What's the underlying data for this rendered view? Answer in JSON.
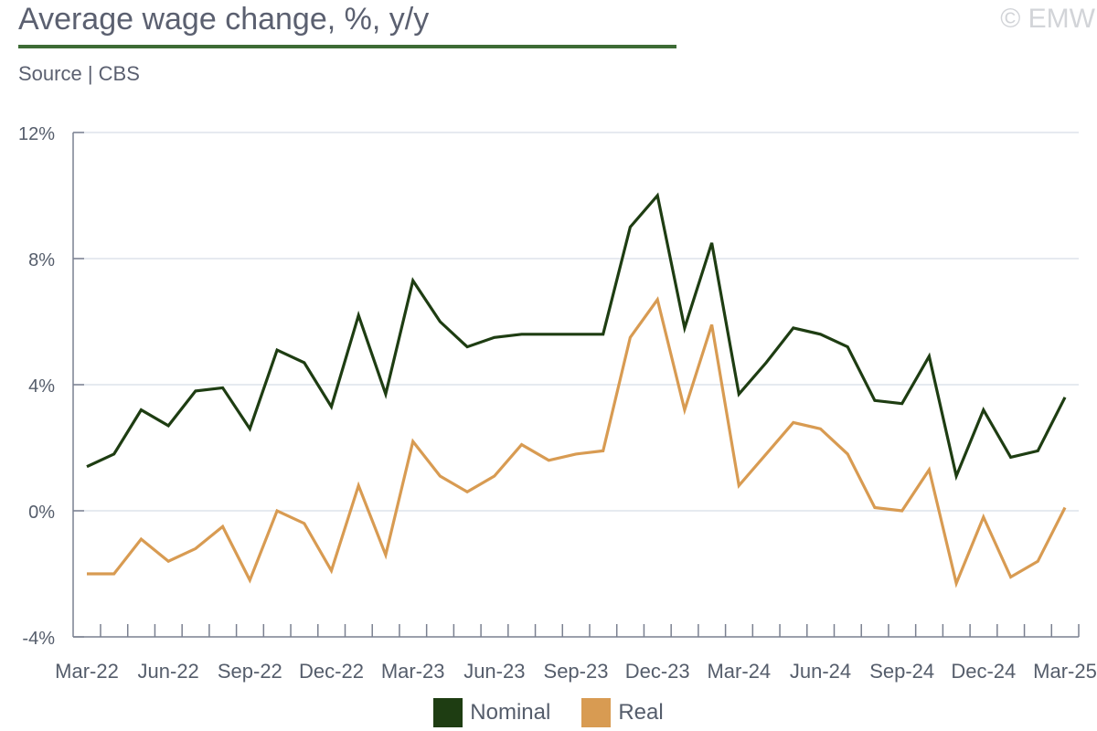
{
  "header": {
    "title": "Average wage change, %, y/y",
    "source": "Source | CBS",
    "copyright": "© EMW"
  },
  "colors": {
    "nominal": "#1e3d12",
    "real": "#d89b52",
    "accent": "#3d6b35",
    "grid": "#dde3ec",
    "axis": "#7a8090"
  },
  "chart_data": {
    "type": "line",
    "x": [
      "Mar-22",
      "Apr-22",
      "May-22",
      "Jun-22",
      "Jul-22",
      "Aug-22",
      "Sep-22",
      "Oct-22",
      "Nov-22",
      "Dec-22",
      "Jan-23",
      "Feb-23",
      "Mar-23",
      "Apr-23",
      "May-23",
      "Jun-23",
      "Jul-23",
      "Aug-23",
      "Sep-23",
      "Oct-23",
      "Nov-23",
      "Dec-23",
      "Jan-24",
      "Feb-24",
      "Mar-24",
      "Apr-24",
      "May-24",
      "Jun-24",
      "Jul-24",
      "Aug-24",
      "Sep-24",
      "Oct-24",
      "Nov-24",
      "Dec-24",
      "Jan-25",
      "Feb-25",
      "Mar-25"
    ],
    "tick_labels": [
      "Mar-22",
      "Jun-22",
      "Sep-22",
      "Dec-22",
      "Mar-23",
      "Jun-23",
      "Sep-23",
      "Dec-23",
      "Mar-24",
      "Jun-24",
      "Sep-24",
      "Dec-24",
      "Mar-25"
    ],
    "series": [
      {
        "name": "Nominal",
        "values": [
          1.4,
          1.8,
          3.2,
          2.7,
          3.8,
          3.9,
          2.6,
          5.1,
          4.7,
          3.3,
          6.2,
          3.7,
          7.3,
          6.0,
          5.2,
          5.5,
          5.6,
          5.6,
          5.6,
          5.6,
          9.0,
          10.0,
          5.8,
          8.5,
          3.7,
          4.7,
          5.8,
          5.6,
          5.2,
          3.5,
          3.4,
          4.9,
          1.1,
          3.2,
          1.7,
          1.9,
          3.6
        ]
      },
      {
        "name": "Real",
        "values": [
          -2.0,
          -2.0,
          -0.9,
          -1.6,
          -1.2,
          -0.5,
          -2.2,
          0.0,
          -0.4,
          -1.9,
          0.8,
          -1.4,
          2.2,
          1.1,
          0.6,
          1.1,
          2.1,
          1.6,
          1.8,
          1.9,
          5.5,
          6.7,
          3.2,
          5.9,
          0.8,
          1.8,
          2.8,
          2.6,
          1.8,
          0.1,
          0.0,
          1.3,
          -2.3,
          -0.2,
          -2.1,
          -1.6,
          0.1
        ]
      }
    ],
    "yticks": [
      "12%",
      "8%",
      "4%",
      "0%",
      "-4%"
    ],
    "ylim": [
      -4,
      12
    ],
    "grid": true,
    "legend": "bottom-center"
  }
}
